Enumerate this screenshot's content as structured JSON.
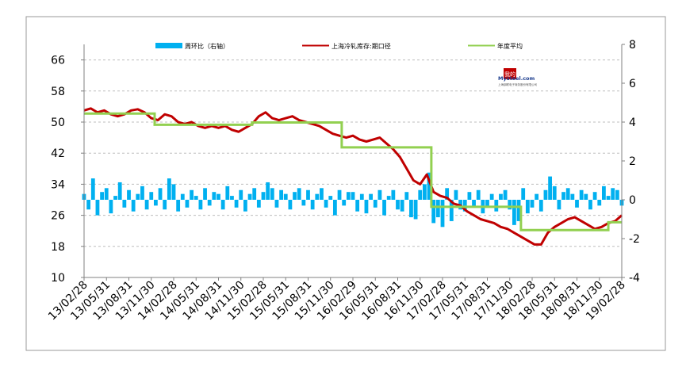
{
  "chart_data": {
    "type": "line",
    "title": "",
    "xlabel": "",
    "ylabel": "",
    "ylim": [
      10,
      70
    ],
    "y2lim": [
      -4,
      8
    ],
    "yticks": [
      10,
      18,
      26,
      34,
      42,
      50,
      58,
      66
    ],
    "y2ticks": [
      -4,
      -2,
      0,
      2,
      4,
      6,
      8
    ],
    "xticks": [
      "13/02/28",
      "13/05/31",
      "13/08/31",
      "13/11/30",
      "14/02/28",
      "14/05/31",
      "14/08/31",
      "14/11/30",
      "15/02/28",
      "15/05/31",
      "15/08/31",
      "15/11/30",
      "16/02/29",
      "16/05/31",
      "16/08/31",
      "16/11/30",
      "17/02/28",
      "17/05/31",
      "17/08/31",
      "17/11/30",
      "18/02/28",
      "18/05/31",
      "18/08/31",
      "18/11/30",
      "19/02/28"
    ],
    "legend_position": "top",
    "grid": "horizontal dashed",
    "series": [
      {
        "name": "周环比（右轴）",
        "type": "area",
        "axis": "right",
        "color": "#00b0f0",
        "x": [
          0,
          0.2,
          0.4,
          0.6,
          0.8,
          1,
          1.2,
          1.4,
          1.6,
          1.8,
          2,
          2.2,
          2.4,
          2.6,
          2.8,
          3,
          3.2,
          3.4,
          3.6,
          3.8,
          4,
          4.2,
          4.4,
          4.6,
          4.8,
          5,
          5.2,
          5.4,
          5.6,
          5.8,
          6,
          6.2,
          6.4,
          6.6,
          6.8,
          7,
          7.2,
          7.4,
          7.6,
          7.8,
          8,
          8.2,
          8.4,
          8.6,
          8.8,
          9,
          9.2,
          9.4,
          9.6,
          9.8,
          10,
          10.2,
          10.4,
          10.6,
          10.8,
          11,
          11.2,
          11.4,
          11.6,
          11.8,
          12,
          12.2,
          12.4,
          12.6,
          12.8,
          13,
          13.2,
          13.4,
          13.6,
          13.8,
          14,
          14.2,
          14.4,
          14.6,
          14.8,
          15,
          15.2,
          15.4,
          15.6,
          15.8,
          16,
          16.2,
          16.4,
          16.6,
          16.8,
          17,
          17.2,
          17.4,
          17.6,
          17.8,
          18,
          18.2,
          18.4,
          18.6,
          18.8,
          19,
          19.2,
          19.4,
          19.6,
          19.8,
          20,
          20.2,
          20.4,
          20.6,
          20.8,
          21,
          21.2,
          21.4,
          21.6,
          21.8,
          22,
          22.2,
          22.4,
          22.6,
          22.8,
          23,
          23.2,
          23.4,
          23.6,
          23.8,
          24
        ],
        "values": [
          0.3,
          -0.5,
          1.1,
          -0.8,
          0.4,
          0.6,
          -0.7,
          0.2,
          0.9,
          -0.4,
          0.5,
          -0.6,
          0.3,
          0.7,
          -0.5,
          0.4,
          -0.3,
          0.6,
          -0.5,
          1.1,
          0.8,
          -0.6,
          0.3,
          -0.4,
          0.5,
          0.2,
          -0.5,
          0.6,
          -0.3,
          0.4,
          0.3,
          -0.5,
          0.7,
          0.2,
          -0.4,
          0.5,
          -0.6,
          0.3,
          0.6,
          -0.4,
          0.4,
          0.9,
          0.6,
          -0.4,
          0.5,
          0.3,
          -0.5,
          0.4,
          0.6,
          -0.3,
          0.5,
          -0.5,
          0.3,
          0.6,
          -0.4,
          0.2,
          -0.8,
          0.5,
          -0.3,
          0.4,
          0.4,
          -0.6,
          0.3,
          -0.7,
          0.3,
          -0.4,
          0.5,
          -0.8,
          0.2,
          0.5,
          -0.5,
          -0.6,
          0.4,
          -0.9,
          -1.0,
          0.5,
          0.8,
          1.4,
          -1.2,
          -0.9,
          -1.4,
          0.6,
          -1.1,
          0.5,
          -0.5,
          -0.6,
          0.4,
          -0.4,
          0.5,
          -0.7,
          -0.4,
          0.3,
          -0.6,
          0.3,
          0.5,
          -0.5,
          -1.3,
          -1.1,
          0.6,
          -0.7,
          -0.4,
          0.3,
          -0.6,
          0.5,
          1.2,
          0.7,
          -0.5,
          0.4,
          0.6,
          0.3,
          -0.4,
          0.5,
          0.3,
          -0.5,
          0.4,
          -0.3,
          0.7,
          0.2,
          0.6,
          0.5,
          -0.3
        ]
      },
      {
        "name": "上海冷轧库存:期口径",
        "type": "line",
        "axis": "left",
        "color": "#c00000",
        "x": [
          0,
          0.3,
          0.6,
          0.9,
          1.2,
          1.5,
          1.8,
          2.1,
          2.4,
          2.7,
          3,
          3.3,
          3.6,
          3.9,
          4.2,
          4.5,
          4.8,
          5.1,
          5.4,
          5.7,
          6,
          6.3,
          6.6,
          6.9,
          7.2,
          7.5,
          7.8,
          8.1,
          8.4,
          8.7,
          9,
          9.3,
          9.6,
          9.9,
          10.2,
          10.5,
          10.8,
          11.1,
          11.4,
          11.7,
          12,
          12.3,
          12.6,
          12.9,
          13.2,
          13.5,
          13.8,
          14.1,
          14.4,
          14.7,
          15,
          15.3,
          15.6,
          15.9,
          16.2,
          16.5,
          16.8,
          17.1,
          17.4,
          17.7,
          18,
          18.3,
          18.6,
          18.9,
          19.2,
          19.5,
          19.8,
          20.1,
          20.4,
          20.7,
          21,
          21.3,
          21.6,
          21.9,
          22.2,
          22.5,
          22.8,
          23.1,
          23.4,
          23.7,
          24
        ],
        "values": [
          53,
          53.5,
          52.5,
          53,
          52,
          51.5,
          52,
          53,
          53.3,
          52.5,
          51,
          50.5,
          52,
          51.5,
          50,
          49.5,
          50,
          49,
          48.5,
          49,
          48.5,
          49,
          48,
          47.5,
          48.5,
          49.5,
          51.5,
          52.5,
          51,
          50.5,
          51,
          51.5,
          50.5,
          50,
          49.5,
          49,
          48,
          47,
          46.5,
          46,
          46.5,
          45.5,
          45,
          45.5,
          46,
          44.5,
          43,
          41,
          38,
          35,
          34,
          36.5,
          32,
          31,
          30.5,
          29,
          28.5,
          27,
          26,
          25,
          24.5,
          24,
          23,
          22.5,
          21.5,
          20.5,
          19.5,
          18.5,
          18.5,
          21.5,
          23,
          24,
          25,
          25.5,
          24.5,
          23.5,
          22.5,
          23,
          24,
          24.5,
          26
        ]
      },
      {
        "name": "年度平均",
        "type": "step",
        "axis": "left",
        "color": "#92d050",
        "segments": [
          {
            "x0": 0,
            "x1": 3.15,
            "value": 52.2
          },
          {
            "x0": 3.15,
            "x1": 7.5,
            "value": 49.3
          },
          {
            "x0": 7.5,
            "x1": 11.5,
            "value": 49.9
          },
          {
            "x0": 11.5,
            "x1": 15.5,
            "value": 43.5
          },
          {
            "x0": 15.5,
            "x1": 19.5,
            "value": 28.2
          },
          {
            "x0": 19.5,
            "x1": 23.4,
            "value": 22.2
          },
          {
            "x0": 23.4,
            "x1": 24,
            "value": 24.2
          }
        ]
      }
    ]
  },
  "watermark": {
    "line1": "我的",
    "line2": "Mysteel.com",
    "line3": "上海钢联电子商务股份有限公司"
  }
}
